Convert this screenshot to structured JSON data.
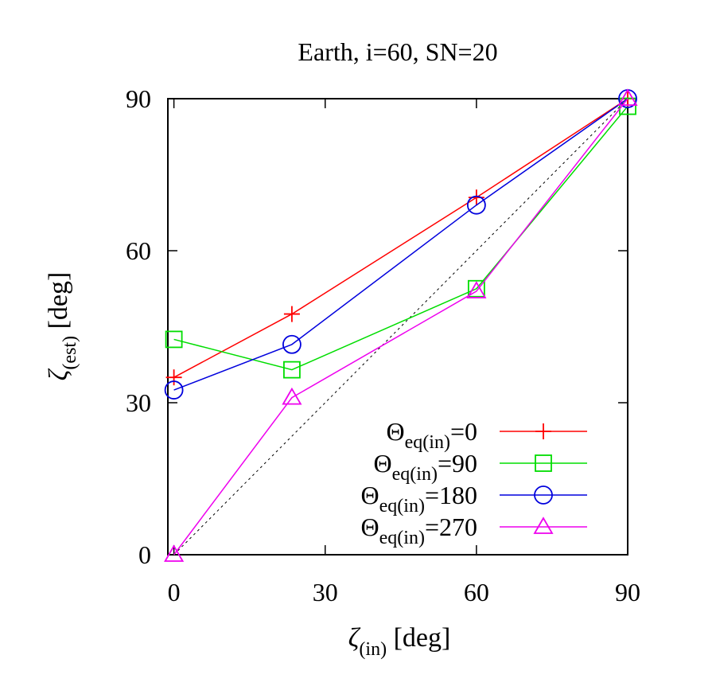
{
  "chart_data": {
    "type": "line",
    "title": "Earth, i=60, SN=20",
    "xlabel": {
      "main": "ζ",
      "sub": "(in)",
      "unit": "[deg]"
    },
    "ylabel": {
      "main": "ζ",
      "sub": "(est)",
      "unit": "[deg]"
    },
    "xlim": [
      -1.2,
      90
    ],
    "ylim": [
      0,
      90
    ],
    "xticks": [
      0,
      30,
      60,
      90
    ],
    "yticks": [
      0,
      30,
      60,
      90
    ],
    "grid": false,
    "legend_position": "bottom-right",
    "reference_line": {
      "style": "dotted",
      "color": "#000000",
      "from": [
        0,
        0
      ],
      "to": [
        90,
        90
      ]
    },
    "series": [
      {
        "name": "Θeq(in)=0",
        "legend_main": "Θ",
        "legend_sub": "eq(in)",
        "legend_value": "=0",
        "marker": "plus",
        "color": "#ff0000",
        "x": [
          0,
          23.4,
          60,
          90
        ],
        "y": [
          35,
          47.5,
          70.5,
          90
        ]
      },
      {
        "name": "Θeq(in)=90",
        "legend_main": "Θ",
        "legend_sub": "eq(in)",
        "legend_value": "=90",
        "marker": "square",
        "color": "#00dd00",
        "x": [
          0,
          23.4,
          60,
          90
        ],
        "y": [
          42.5,
          36.5,
          52.5,
          88.5
        ]
      },
      {
        "name": "Θeq(in)=180",
        "legend_main": "Θ",
        "legend_sub": "eq(in)",
        "legend_value": "=180",
        "marker": "circle",
        "color": "#0000dd",
        "x": [
          0,
          23.4,
          60,
          90
        ],
        "y": [
          32.5,
          41.5,
          69,
          90
        ]
      },
      {
        "name": "Θeq(in)=270",
        "legend_main": "Θ",
        "legend_sub": "eq(in)",
        "legend_value": "=270",
        "marker": "triangle",
        "color": "#ee00ee",
        "x": [
          0,
          23.4,
          60,
          90
        ],
        "y": [
          0,
          31,
          52,
          90
        ]
      }
    ]
  }
}
